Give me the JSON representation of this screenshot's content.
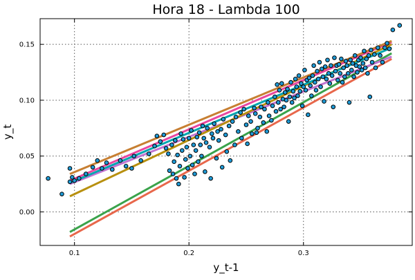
{
  "chart_data": {
    "type": "scatter",
    "title": "Hora 18 - Lambda 100",
    "xlabel": "y_t-1",
    "ylabel": "y_t",
    "xlim": [
      0.07,
      0.395
    ],
    "ylim": [
      -0.03,
      0.173
    ],
    "grid": true,
    "legend": "none",
    "x_ticks": [
      {
        "value": 0.1,
        "label": "0.1"
      },
      {
        "value": 0.2,
        "label": "0.2"
      },
      {
        "value": 0.3,
        "label": "0.3"
      }
    ],
    "y_ticks": [
      {
        "value": 0.0,
        "label": "0.00"
      },
      {
        "value": 0.05,
        "label": "0.05"
      },
      {
        "value": 0.1,
        "label": "0.10"
      },
      {
        "value": 0.15,
        "label": "0.15"
      }
    ],
    "point_color": "#1f9bd7",
    "points": [
      [
        0.077,
        0.03
      ],
      [
        0.089,
        0.016
      ],
      [
        0.096,
        0.039
      ],
      [
        0.096,
        0.027
      ],
      [
        0.098,
        0.031
      ],
      [
        0.1,
        0.028
      ],
      [
        0.104,
        0.03
      ],
      [
        0.11,
        0.034
      ],
      [
        0.116,
        0.04
      ],
      [
        0.12,
        0.046
      ],
      [
        0.124,
        0.039
      ],
      [
        0.128,
        0.044
      ],
      [
        0.133,
        0.038
      ],
      [
        0.14,
        0.046
      ],
      [
        0.145,
        0.041
      ],
      [
        0.15,
        0.039
      ],
      [
        0.152,
        0.05
      ],
      [
        0.158,
        0.046
      ],
      [
        0.165,
        0.052
      ],
      [
        0.17,
        0.059
      ],
      [
        0.172,
        0.068
      ],
      [
        0.175,
        0.063
      ],
      [
        0.178,
        0.069
      ],
      [
        0.18,
        0.057
      ],
      [
        0.182,
        0.052
      ],
      [
        0.183,
        0.037
      ],
      [
        0.185,
        0.06
      ],
      [
        0.186,
        0.034
      ],
      [
        0.187,
        0.045
      ],
      [
        0.188,
        0.064
      ],
      [
        0.189,
        0.03
      ],
      [
        0.19,
        0.051
      ],
      [
        0.191,
        0.025
      ],
      [
        0.192,
        0.041
      ],
      [
        0.193,
        0.07
      ],
      [
        0.194,
        0.055
      ],
      [
        0.195,
        0.065
      ],
      [
        0.196,
        0.031
      ],
      [
        0.197,
        0.047
      ],
      [
        0.198,
        0.058
      ],
      [
        0.199,
        0.039
      ],
      [
        0.2,
        0.066
      ],
      [
        0.201,
        0.05
      ],
      [
        0.202,
        0.073
      ],
      [
        0.203,
        0.042
      ],
      [
        0.204,
        0.06
      ],
      [
        0.205,
        0.034
      ],
      [
        0.206,
        0.055
      ],
      [
        0.207,
        0.067
      ],
      [
        0.208,
        0.045
      ],
      [
        0.209,
        0.071
      ],
      [
        0.21,
        0.06
      ],
      [
        0.211,
        0.05
      ],
      [
        0.212,
        0.077
      ],
      [
        0.213,
        0.066
      ],
      [
        0.214,
        0.036
      ],
      [
        0.215,
        0.062
      ],
      [
        0.216,
        0.075
      ],
      [
        0.218,
        0.058
      ],
      [
        0.219,
        0.03
      ],
      [
        0.22,
        0.07
      ],
      [
        0.221,
        0.066
      ],
      [
        0.222,
        0.079
      ],
      [
        0.224,
        0.048
      ],
      [
        0.225,
        0.072
      ],
      [
        0.226,
        0.064
      ],
      [
        0.228,
        0.074
      ],
      [
        0.229,
        0.04
      ],
      [
        0.23,
        0.083
      ],
      [
        0.232,
        0.069
      ],
      [
        0.233,
        0.054
      ],
      [
        0.235,
        0.077
      ],
      [
        0.236,
        0.046
      ],
      [
        0.238,
        0.081
      ],
      [
        0.24,
        0.06
      ],
      [
        0.241,
        0.085
      ],
      [
        0.243,
        0.072
      ],
      [
        0.245,
        0.089
      ],
      [
        0.246,
        0.066
      ],
      [
        0.248,
        0.092
      ],
      [
        0.25,
        0.078
      ],
      [
        0.251,
        0.061
      ],
      [
        0.252,
        0.086
      ],
      [
        0.254,
        0.081
      ],
      [
        0.255,
        0.07
      ],
      [
        0.257,
        0.093
      ],
      [
        0.258,
        0.088
      ],
      [
        0.259,
        0.071
      ],
      [
        0.26,
        0.075
      ],
      [
        0.262,
        0.085
      ],
      [
        0.263,
        0.094
      ],
      [
        0.265,
        0.08
      ],
      [
        0.266,
        0.092
      ],
      [
        0.268,
        0.072
      ],
      [
        0.269,
        0.098
      ],
      [
        0.27,
        0.086
      ],
      [
        0.272,
        0.082
      ],
      [
        0.273,
        0.095
      ],
      [
        0.275,
        0.103
      ],
      [
        0.276,
        0.09
      ],
      [
        0.277,
        0.114
      ],
      [
        0.278,
        0.098
      ],
      [
        0.279,
        0.109
      ],
      [
        0.28,
        0.092
      ],
      [
        0.281,
        0.115
      ],
      [
        0.282,
        0.101
      ],
      [
        0.283,
        0.094
      ],
      [
        0.284,
        0.107
      ],
      [
        0.285,
        0.1
      ],
      [
        0.286,
        0.11
      ],
      [
        0.287,
        0.081
      ],
      [
        0.288,
        0.103
      ],
      [
        0.289,
        0.116
      ],
      [
        0.29,
        0.098
      ],
      [
        0.291,
        0.108
      ],
      [
        0.292,
        0.102
      ],
      [
        0.293,
        0.119
      ],
      [
        0.294,
        0.112
      ],
      [
        0.295,
        0.104
      ],
      [
        0.296,
        0.122
      ],
      [
        0.297,
        0.108
      ],
      [
        0.298,
        0.115
      ],
      [
        0.299,
        0.095
      ],
      [
        0.3,
        0.112
      ],
      [
        0.301,
        0.127
      ],
      [
        0.302,
        0.109
      ],
      [
        0.303,
        0.118
      ],
      [
        0.304,
        0.087
      ],
      [
        0.305,
        0.12
      ],
      [
        0.306,
        0.113
      ],
      [
        0.307,
        0.104
      ],
      [
        0.308,
        0.122
      ],
      [
        0.309,
        0.131
      ],
      [
        0.31,
        0.116
      ],
      [
        0.311,
        0.109
      ],
      [
        0.312,
        0.126
      ],
      [
        0.313,
        0.119
      ],
      [
        0.314,
        0.134
      ],
      [
        0.315,
        0.112
      ],
      [
        0.316,
        0.128
      ],
      [
        0.317,
        0.121
      ],
      [
        0.318,
        0.099
      ],
      [
        0.319,
        0.13
      ],
      [
        0.32,
        0.119
      ],
      [
        0.321,
        0.136
      ],
      [
        0.322,
        0.124
      ],
      [
        0.323,
        0.115
      ],
      [
        0.324,
        0.131
      ],
      [
        0.325,
        0.122
      ],
      [
        0.326,
        0.094
      ],
      [
        0.327,
        0.138
      ],
      [
        0.328,
        0.126
      ],
      [
        0.329,
        0.131
      ],
      [
        0.33,
        0.118
      ],
      [
        0.331,
        0.132
      ],
      [
        0.332,
        0.124
      ],
      [
        0.333,
        0.137
      ],
      [
        0.334,
        0.116
      ],
      [
        0.335,
        0.129
      ],
      [
        0.336,
        0.121
      ],
      [
        0.337,
        0.135
      ],
      [
        0.338,
        0.131
      ],
      [
        0.339,
        0.124
      ],
      [
        0.34,
        0.098
      ],
      [
        0.341,
        0.136
      ],
      [
        0.342,
        0.127
      ],
      [
        0.343,
        0.133
      ],
      [
        0.344,
        0.121
      ],
      [
        0.345,
        0.14
      ],
      [
        0.346,
        0.131
      ],
      [
        0.347,
        0.125
      ],
      [
        0.348,
        0.136
      ],
      [
        0.349,
        0.13
      ],
      [
        0.35,
        0.138
      ],
      [
        0.351,
        0.127
      ],
      [
        0.352,
        0.133
      ],
      [
        0.353,
        0.144
      ],
      [
        0.354,
        0.129
      ],
      [
        0.355,
        0.137
      ],
      [
        0.356,
        0.124
      ],
      [
        0.357,
        0.14
      ],
      [
        0.358,
        0.103
      ],
      [
        0.359,
        0.145
      ],
      [
        0.36,
        0.134
      ],
      [
        0.362,
        0.141
      ],
      [
        0.363,
        0.129
      ],
      [
        0.365,
        0.147
      ],
      [
        0.367,
        0.14
      ],
      [
        0.369,
        0.134
      ],
      [
        0.371,
        0.147
      ],
      [
        0.373,
        0.151
      ],
      [
        0.375,
        0.146
      ],
      [
        0.378,
        0.163
      ],
      [
        0.384,
        0.167
      ]
    ],
    "series": [
      {
        "color": "#e8674b",
        "x": [
          0.096,
          0.377
        ],
        "y": [
          -0.022,
          0.137
        ]
      },
      {
        "color": "#3aa34b",
        "x": [
          0.096,
          0.377
        ],
        "y": [
          -0.018,
          0.142
        ]
      },
      {
        "color": "#c074d2",
        "x": [
          0.096,
          0.377
        ],
        "y": [
          0.025,
          0.139
        ]
      },
      {
        "color": "#b8900f",
        "x": [
          0.096,
          0.377
        ],
        "y": [
          0.014,
          0.15
        ]
      },
      {
        "color": "#00a5b0",
        "x": [
          0.096,
          0.377
        ],
        "y": [
          0.026,
          0.147
        ]
      },
      {
        "color": "#e8479f",
        "x": [
          0.096,
          0.377
        ],
        "y": [
          0.028,
          0.152
        ]
      },
      {
        "color": "#c77f32",
        "x": [
          0.096,
          0.377
        ],
        "y": [
          0.034,
          0.153
        ]
      }
    ]
  }
}
